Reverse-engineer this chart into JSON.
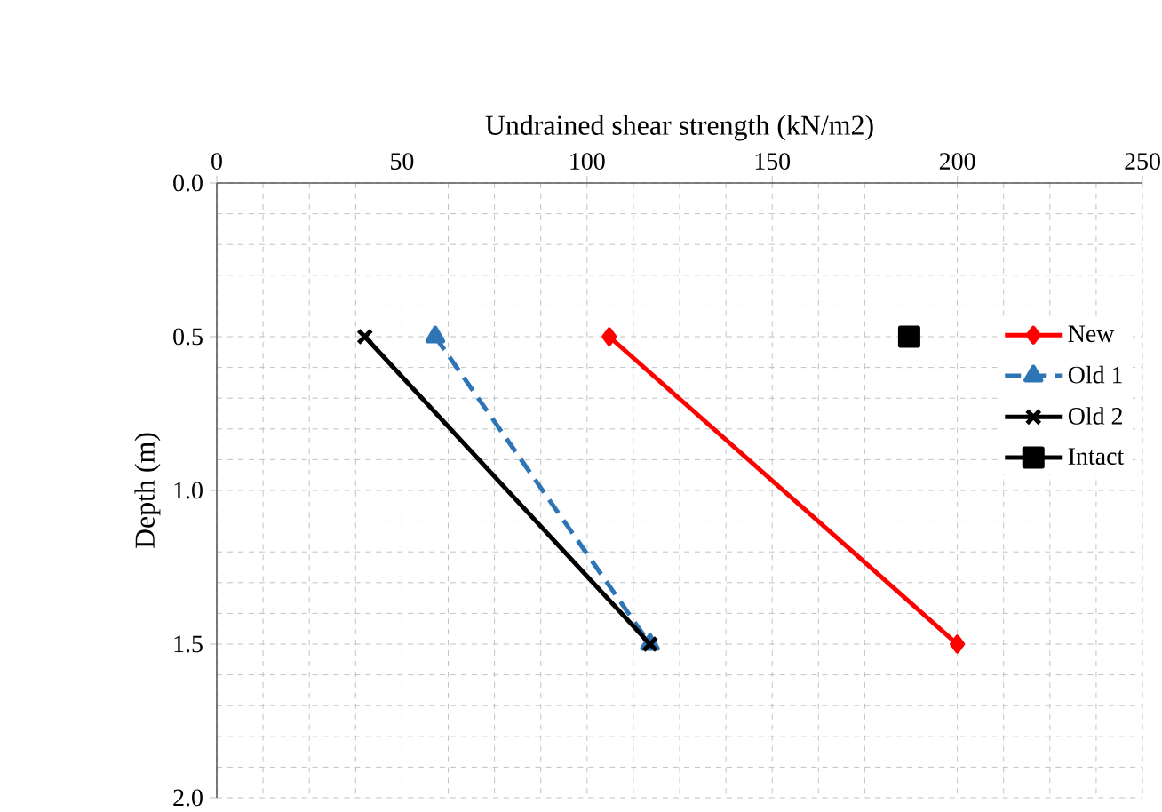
{
  "chart_data": {
    "type": "line",
    "xlabel": "Undrained shear strength (kN/m2)",
    "ylabel": "Depth (m)",
    "xlim": [
      0,
      250
    ],
    "xticks": [
      0,
      50,
      100,
      150,
      200,
      250
    ],
    "ylim": [
      2.0,
      0.0
    ],
    "yticks": [
      {
        "value": 0,
        "label": "0.0"
      },
      {
        "value": 0.5,
        "label": "0.5"
      },
      {
        "value": 1.0,
        "label": "1.0"
      },
      {
        "value": 1.5,
        "label": "1.5"
      },
      {
        "value": 2.0,
        "label": "2.0"
      }
    ],
    "grid": true,
    "legend": "right",
    "series": [
      {
        "name": "New",
        "color": "#ff0000",
        "x": [
          106,
          200
        ],
        "values": [
          0.5,
          1.5
        ],
        "marker": "diamond",
        "line_style": "solid"
      },
      {
        "name": "Old 1",
        "color": "#2e75b6",
        "x": [
          59,
          117
        ],
        "values": [
          0.5,
          1.5
        ],
        "marker": "triangle",
        "line_style": "dashed"
      },
      {
        "name": "Old 2",
        "color": "#000000",
        "x": [
          40,
          117
        ],
        "values": [
          0.5,
          1.5
        ],
        "marker": "cross",
        "line_style": "solid"
      },
      {
        "name": "Intact",
        "color": "#000000",
        "x": [
          187
        ],
        "values": [
          0.5
        ],
        "marker": "square",
        "line_style": "solid"
      }
    ]
  }
}
